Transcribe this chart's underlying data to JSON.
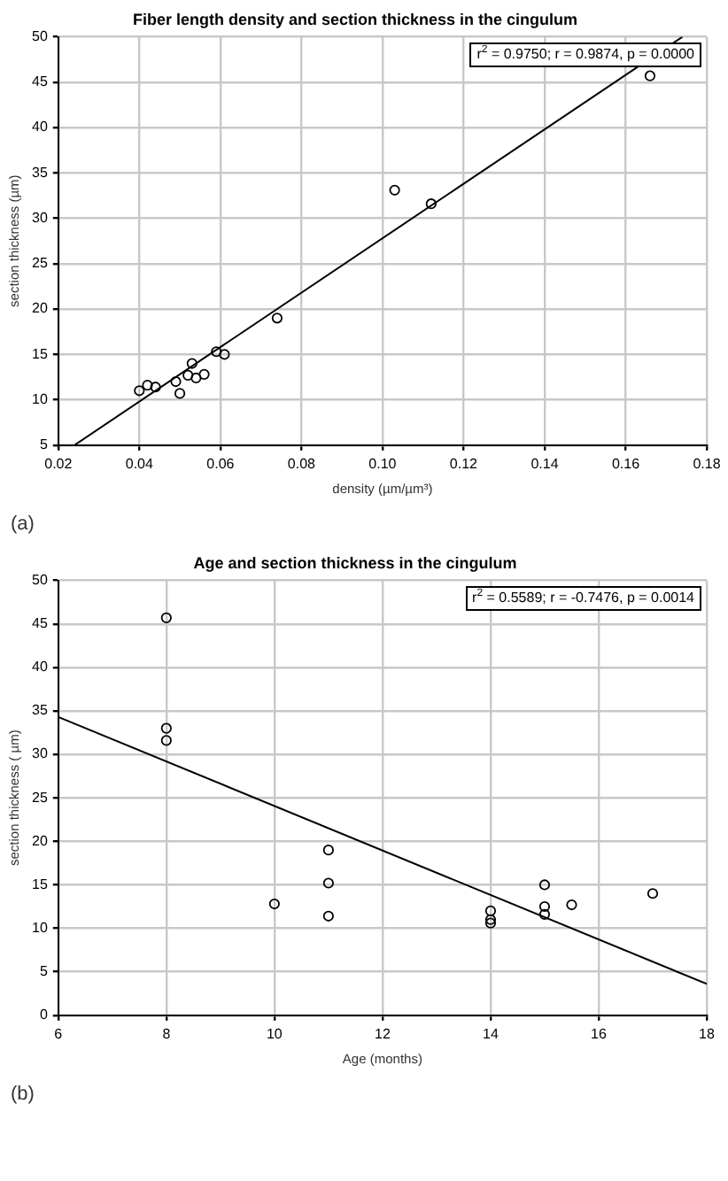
{
  "chart_data": [
    {
      "type": "scatter",
      "title": "Fiber length density and section thickness in the cingulum",
      "xlabel": "density (µm/µm³)",
      "ylabel": "section thickness (µm)",
      "annotations": [
        "r$^{2}$ = 0.9750;  r = 0.9874, p = 0.0000",
        "(a)"
      ],
      "xlim": [
        0.02,
        0.18
      ],
      "xticks": [
        0.02,
        0.04,
        0.06,
        0.08,
        {
          "value": 0.1,
          "label": "0.10"
        },
        0.12,
        0.14,
        0.16,
        0.18
      ],
      "ylim": [
        5,
        50
      ],
      "yticks": [
        5,
        10,
        15,
        20,
        25,
        30,
        35,
        40,
        45,
        50
      ],
      "grid": true,
      "marker": "circle",
      "series": [
        {
          "type": "scatter",
          "color": "#000000",
          "x": [
            0.166,
            0.103,
            0.112,
            0.074,
            0.059,
            0.061,
            0.053,
            0.04,
            0.042,
            0.044,
            0.049,
            0.052,
            0.054,
            0.056,
            0.05
          ],
          "values": [
            45.7,
            33.1,
            31.6,
            19.0,
            15.3,
            15.0,
            14.0,
            11.0,
            11.6,
            11.4,
            12.0,
            12.7,
            12.4,
            12.8,
            10.7
          ]
        },
        {
          "type": "line",
          "color": "#000000",
          "marker": "none",
          "x": [
            0.024,
            0.174
          ],
          "values": [
            5,
            50
          ]
        }
      ]
    },
    {
      "type": "scatter",
      "title": "Age and section thickness in the cingulum",
      "xlabel": "Age (months)",
      "ylabel": "section thickness ( µm)",
      "annotations": [
        "r$^{2}$ = 0.5589;  r = -0.7476, p = 0.0014",
        "(b)"
      ],
      "xlim": [
        6,
        18
      ],
      "xticks": [
        6,
        8,
        10,
        12,
        14,
        16,
        18
      ],
      "ylim": [
        0,
        50
      ],
      "yticks": [
        0,
        5,
        10,
        15,
        20,
        25,
        30,
        35,
        40,
        45,
        50
      ],
      "grid": true,
      "marker": "circle",
      "series": [
        {
          "type": "scatter",
          "color": "#000000",
          "x": [
            8,
            8,
            8,
            10,
            11,
            11,
            11,
            14,
            14,
            14,
            15,
            15,
            15,
            15.5,
            17
          ],
          "values": [
            45.7,
            33,
            31.6,
            12.8,
            19,
            15.2,
            11.4,
            12,
            11,
            10.6,
            15,
            12.5,
            11.6,
            12.7,
            14
          ]
        },
        {
          "type": "line",
          "color": "#000000",
          "marker": "none",
          "x": [
            6,
            18
          ],
          "values": [
            34.3,
            3.6
          ]
        }
      ]
    }
  ]
}
